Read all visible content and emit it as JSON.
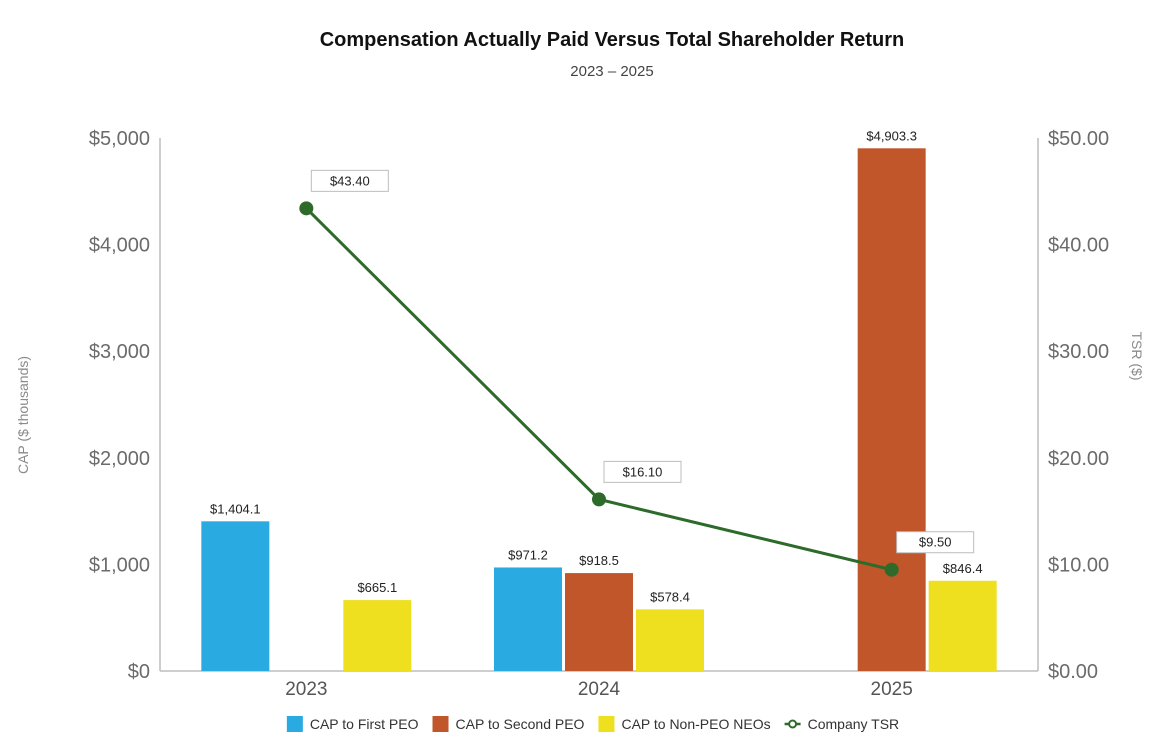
{
  "chart_data": {
    "type": "bar",
    "title": "Compensation Actually Paid Versus Total Shareholder Return",
    "subtitle": "2023 – 2025",
    "categories": [
      "2023",
      "2024",
      "2025"
    ],
    "y_left": {
      "label": "CAP ($ thousands)",
      "range": [
        0,
        5000
      ],
      "ticks": [
        0,
        1000,
        2000,
        3000,
        4000,
        5000
      ],
      "tick_labels": [
        "$0",
        "$1,000",
        "$2,000",
        "$3,000",
        "$4,000",
        "$5,000"
      ]
    },
    "y_right": {
      "label": "TSR ($)",
      "range": [
        0,
        50
      ],
      "ticks": [
        0,
        10,
        20,
        30,
        40,
        50
      ],
      "tick_labels": [
        "$0.00",
        "$10.00",
        "$20.00",
        "$30.00",
        "$40.00",
        "$50.00"
      ]
    },
    "series": [
      {
        "name": "CAP to First PEO",
        "color": "#29abe2",
        "values": [
          1404.1,
          971.2,
          null
        ],
        "labels": [
          "$1,404.1",
          "$971.2",
          null
        ]
      },
      {
        "name": "CAP to Second PEO",
        "color": "#c0562a",
        "values": [
          null,
          918.5,
          4903.3
        ],
        "labels": [
          null,
          "$918.5",
          "$4,903.3"
        ]
      },
      {
        "name": "CAP to Non-PEO NEOs",
        "color": "#eedf1f",
        "values": [
          665.1,
          578.4,
          846.4
        ],
        "labels": [
          "$665.1",
          "$578.4",
          "$846.4"
        ]
      }
    ],
    "line_series": {
      "name": "Company TSR",
      "color": "#2e6b2a",
      "axis": "right",
      "values": [
        43.4,
        16.1,
        9.5
      ],
      "labels": [
        "$43.40",
        "$16.10",
        "$9.50"
      ]
    },
    "legend_position": "bottom-center"
  }
}
